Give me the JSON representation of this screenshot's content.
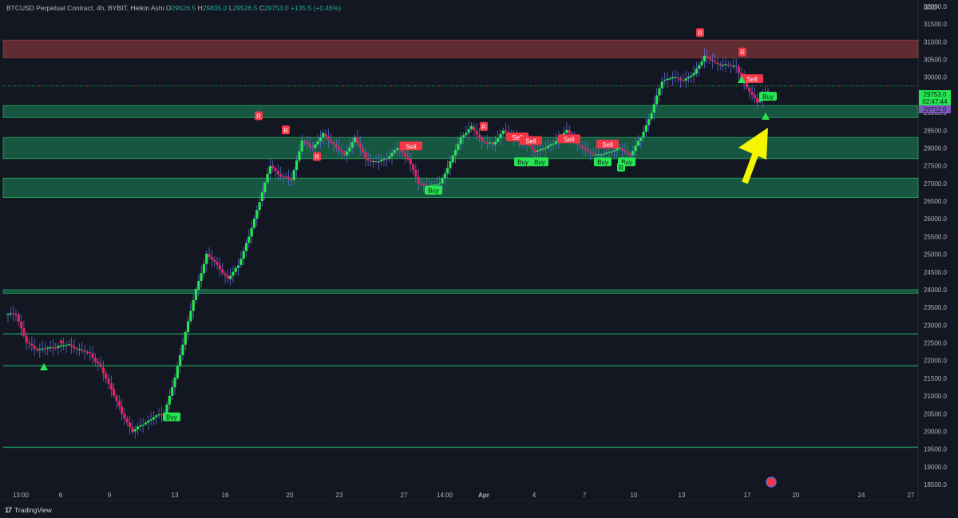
{
  "header": {
    "symbol": "BTCUSD Perpetual Contract, 4h, BYBIT, Heikin Ashi",
    "o_label": "O",
    "o_value": "29526.5",
    "h_label": "H",
    "h_value": "29835.0",
    "l_label": "L",
    "l_value": "29526.5",
    "c_label": "C",
    "c_value": "29753.0",
    "change": "+135.5 (+0.46%)"
  },
  "currency": "USD",
  "brand": {
    "logo": "17",
    "name": "TradingView"
  },
  "colors": {
    "background": "#131722",
    "up": "#26e653",
    "down": "#e0245e",
    "wick": "#5d6bd4",
    "resistance_zone": "#ef5350",
    "support_zone": "#1b8a5a",
    "arrow": "#f5f500",
    "buy_label": "#26e653",
    "sell_label": "#f23645"
  },
  "chart_data": {
    "type": "candlestick",
    "yticks": [
      "32000.0",
      "31500.0",
      "31000.0",
      "30500.0",
      "30000.0",
      "29500.0",
      "29000.0",
      "28500.0",
      "28000.0",
      "27500.0",
      "27000.0",
      "26500.0",
      "26000.0",
      "25500.0",
      "25000.0",
      "24500.0",
      "24000.0",
      "23500.0",
      "23000.0",
      "22500.0",
      "22000.0",
      "21500.0",
      "21000.0",
      "20500.0",
      "20000.0",
      "19500.0",
      "19000.0",
      "18500.0"
    ],
    "ylim": [
      18300,
      32300
    ],
    "xticks": [
      "13:00",
      "6",
      "9",
      "13",
      "16",
      "20",
      "23",
      "27",
      "14:00",
      "Apr",
      "4",
      "7",
      "10",
      "13",
      "17",
      "20",
      "24",
      "27"
    ],
    "price_labels": [
      {
        "text": "29753.0",
        "color": "#26e653",
        "value": 29753
      },
      {
        "text": "02:47:44",
        "color": "#26e653",
        "value": 29560
      },
      {
        "text": "29712.0",
        "color": "#7e57c2",
        "value": 29712
      }
    ],
    "zones": [
      {
        "type": "resistance",
        "from": 30550,
        "to": 31050
      },
      {
        "type": "support",
        "from": 28860,
        "to": 29200
      },
      {
        "type": "support",
        "from": 27700,
        "to": 28300
      },
      {
        "type": "support",
        "from": 26600,
        "to": 27150
      },
      {
        "type": "support",
        "from": 23900,
        "to": 24000
      }
    ],
    "levels": [
      22750,
      21850,
      19550
    ],
    "dotted_level": 29753,
    "series": [
      {
        "name": "Heikin Ashi",
        "path_close": [
          23300,
          22500,
          22300,
          22350,
          22400,
          22450,
          22300,
          22200,
          21800,
          21200,
          20500,
          20000,
          20200,
          20400,
          20500,
          21500,
          22800,
          24000,
          25000,
          24700,
          24300,
          24700,
          25500,
          26500,
          27500,
          27200,
          27100,
          28200,
          28000,
          28400,
          28100,
          27800,
          28300,
          27700,
          27600,
          27700,
          28000,
          27700,
          27000,
          26900,
          27000,
          27600,
          28300,
          28600,
          28200,
          28100,
          28500,
          28300,
          28150,
          27900,
          28000,
          28200,
          28500,
          28100,
          27900,
          27800,
          27900,
          28000,
          27800,
          28300,
          29000,
          29900,
          30000,
          29900,
          30100,
          30600,
          30400,
          30350,
          30300,
          29700,
          29300,
          29600
        ]
      }
    ],
    "signals": [
      {
        "text": "R",
        "value": 31250,
        "color": "#f23645"
      },
      {
        "text": "R",
        "value": 30700,
        "color": "#f23645"
      },
      {
        "text": "R",
        "value": 28600,
        "color": "#f23645"
      },
      {
        "text": "R",
        "value": 28500,
        "color": "#f23645"
      },
      {
        "text": "R",
        "value": 27750,
        "color": "#f23645"
      },
      {
        "text": "R",
        "value": 28900,
        "color": "#f23645"
      },
      {
        "text": "Sell",
        "value": 28050,
        "color": "#f23645"
      },
      {
        "text": "Sell",
        "value": 28300,
        "color": "#f23645"
      },
      {
        "text": "Sell",
        "value": 28200,
        "color": "#f23645"
      },
      {
        "text": "Sell",
        "value": 28250,
        "color": "#f23645"
      },
      {
        "text": "Sell",
        "value": 28100,
        "color": "#f23645"
      },
      {
        "text": "Sell",
        "value": 29950,
        "color": "#f23645"
      },
      {
        "text": "Buy",
        "value": 20400,
        "color": "#26e653"
      },
      {
        "text": "Buy",
        "value": 26800,
        "color": "#26e653"
      },
      {
        "text": "Buy",
        "value": 27600,
        "color": "#26e653"
      },
      {
        "text": "Buy",
        "value": 27600,
        "color": "#26e653"
      },
      {
        "text": "Buy",
        "value": 27600,
        "color": "#26e653"
      },
      {
        "text": "Buy",
        "value": 27600,
        "color": "#26e653"
      },
      {
        "text": "Buy",
        "value": 29450,
        "color": "#26e653"
      },
      {
        "text": "R",
        "value": 27450,
        "color": "#26e653"
      }
    ]
  }
}
